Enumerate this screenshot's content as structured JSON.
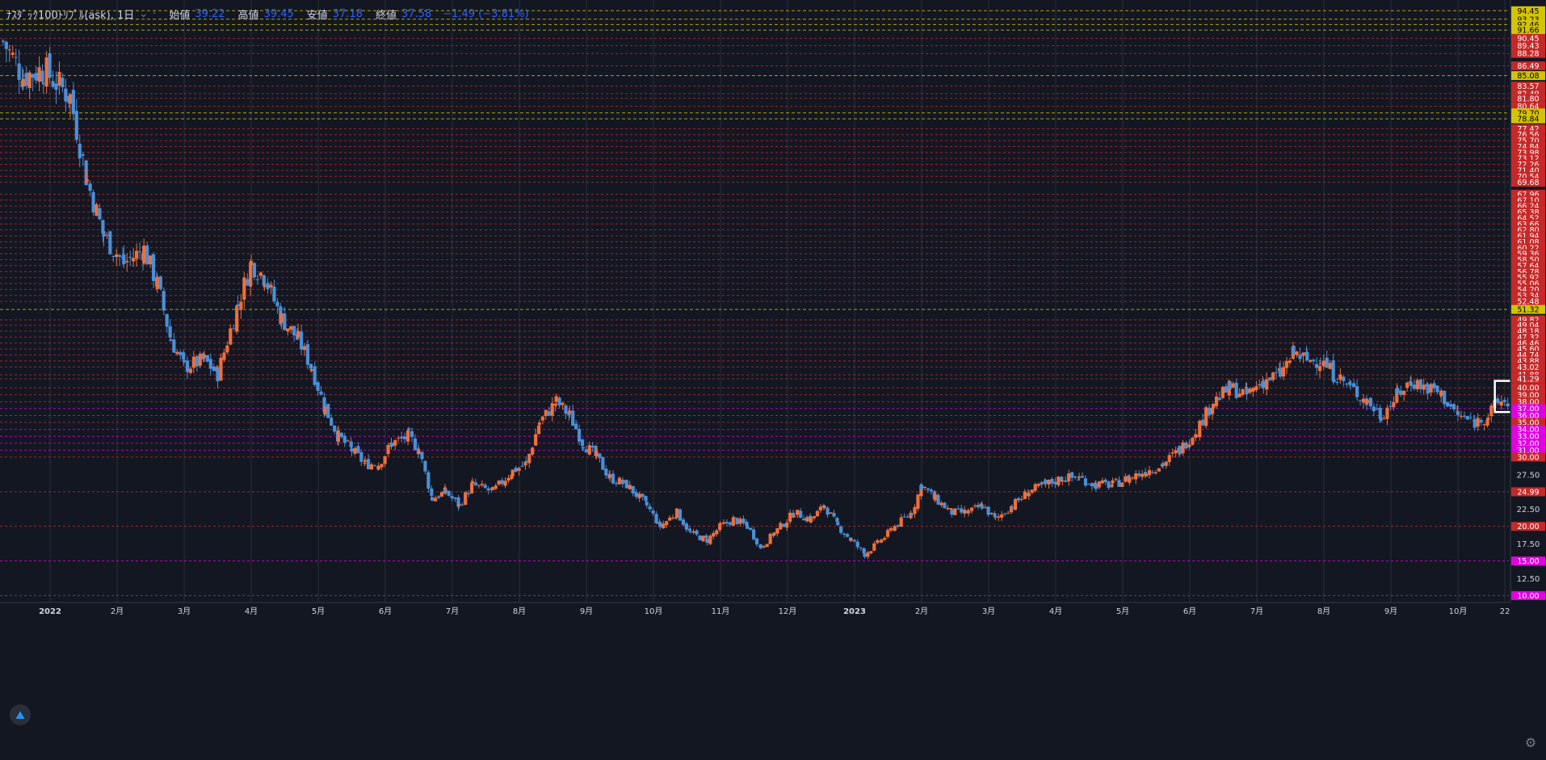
{
  "header": {
    "symbol": "ﾅｽﾀﾞｯｸ100ﾄﾘﾌﾟﾙ(ask), 1日",
    "open_label": "始値",
    "open_value": "39.22",
    "high_label": "高値",
    "high_value": "39.45",
    "low_label": "安値",
    "low_value": "37.18",
    "close_label": "終値",
    "close_value": "37.58",
    "change": "−1.49 (−3.81%)"
  },
  "colors": {
    "background": "#131722",
    "up": "#ef6f3a",
    "down": "#4a8fd8",
    "yellow_line": "#d4c400",
    "red_line": "#c62828",
    "magenta_line": "#e000e0",
    "grid": "#2a2e39",
    "axis_text": "#d1d4dc"
  },
  "chart_data": {
    "type": "candlestick",
    "title": "ﾅｽﾀﾞｯｸ100ﾄﾘﾌﾟﾙ(ask), 1日",
    "y_range": [
      9,
      96
    ],
    "y_ticks": [
      "12.50",
      "17.50",
      "22.50",
      "27.50"
    ],
    "x_tick_labels": [
      "2022",
      "2月",
      "3月",
      "4月",
      "5月",
      "6月",
      "7月",
      "8月",
      "9月",
      "10月",
      "11月",
      "12月",
      "2023",
      "2月",
      "3月",
      "4月",
      "5月",
      "6月",
      "7月",
      "8月",
      "9月",
      "10月",
      "22"
    ],
    "x_tick_months": [
      0,
      1,
      2,
      3,
      4,
      5,
      6,
      7,
      8,
      9,
      10,
      11,
      12,
      13,
      14,
      15,
      16,
      17,
      18,
      19,
      20,
      21,
      21.7
    ],
    "price_path": [
      [
        -0.7,
        90
      ],
      [
        -0.4,
        85
      ],
      [
        -0.1,
        86
      ],
      [
        0.3,
        82
      ],
      [
        0.55,
        70
      ],
      [
        0.8,
        62
      ],
      [
        1.1,
        58
      ],
      [
        1.4,
        60
      ],
      [
        1.6,
        55
      ],
      [
        1.8,
        47
      ],
      [
        2.0,
        43
      ],
      [
        2.3,
        44
      ],
      [
        2.5,
        42
      ],
      [
        2.8,
        52
      ],
      [
        3.0,
        58
      ],
      [
        3.2,
        56
      ],
      [
        3.45,
        50
      ],
      [
        3.7,
        47
      ],
      [
        3.9,
        43
      ],
      [
        4.1,
        37
      ],
      [
        4.3,
        33
      ],
      [
        4.5,
        31
      ],
      [
        4.7,
        29
      ],
      [
        4.9,
        29
      ],
      [
        5.1,
        32
      ],
      [
        5.35,
        33
      ],
      [
        5.5,
        31
      ],
      [
        5.7,
        24
      ],
      [
        5.9,
        25
      ],
      [
        6.1,
        23
      ],
      [
        6.3,
        26
      ],
      [
        6.6,
        25
      ],
      [
        6.9,
        28
      ],
      [
        7.1,
        29
      ],
      [
        7.3,
        35
      ],
      [
        7.55,
        38
      ],
      [
        7.75,
        36
      ],
      [
        7.95,
        32
      ],
      [
        8.15,
        30
      ],
      [
        8.35,
        27
      ],
      [
        8.6,
        26
      ],
      [
        8.9,
        23
      ],
      [
        9.1,
        20
      ],
      [
        9.35,
        22
      ],
      [
        9.55,
        19
      ],
      [
        9.8,
        18
      ],
      [
        10.0,
        20
      ],
      [
        10.2,
        21
      ],
      [
        10.4,
        20
      ],
      [
        10.6,
        17
      ],
      [
        10.8,
        19
      ],
      [
        11.1,
        22
      ],
      [
        11.35,
        21
      ],
      [
        11.55,
        23
      ],
      [
        11.75,
        20
      ],
      [
        11.95,
        18
      ],
      [
        12.15,
        16
      ],
      [
        12.4,
        18
      ],
      [
        12.6,
        20
      ],
      [
        12.85,
        22
      ],
      [
        13.0,
        26
      ],
      [
        13.2,
        24
      ],
      [
        13.45,
        22
      ],
      [
        13.7,
        22
      ],
      [
        13.9,
        23
      ],
      [
        14.1,
        21
      ],
      [
        14.35,
        23
      ],
      [
        14.6,
        25
      ],
      [
        14.85,
        26
      ],
      [
        15.1,
        27
      ],
      [
        15.35,
        27
      ],
      [
        15.6,
        26
      ],
      [
        15.85,
        26
      ],
      [
        16.1,
        27
      ],
      [
        16.35,
        28
      ],
      [
        16.6,
        29
      ],
      [
        16.85,
        31
      ],
      [
        17.1,
        34
      ],
      [
        17.35,
        38
      ],
      [
        17.6,
        40
      ],
      [
        17.85,
        39
      ],
      [
        18.1,
        41
      ],
      [
        18.35,
        42
      ],
      [
        18.55,
        45
      ],
      [
        18.75,
        44
      ],
      [
        18.95,
        44
      ],
      [
        19.15,
        42
      ],
      [
        19.4,
        40
      ],
      [
        19.65,
        38
      ],
      [
        19.85,
        36
      ],
      [
        20.1,
        39
      ],
      [
        20.3,
        41
      ],
      [
        20.55,
        40
      ],
      [
        20.75,
        39
      ],
      [
        21.0,
        36
      ],
      [
        21.25,
        35
      ],
      [
        21.45,
        36
      ],
      [
        21.6,
        38
      ],
      [
        21.75,
        38
      ]
    ],
    "lines": [
      {
        "value": 94.45,
        "label": "94.45",
        "kind": "yellow"
      },
      {
        "value": 93.23,
        "label": "93.23",
        "kind": "yellow"
      },
      {
        "value": 92.46,
        "label": "92.46",
        "kind": "yellow"
      },
      {
        "value": 91.66,
        "label": "91.66",
        "kind": "yellow"
      },
      {
        "value": 90.45,
        "label": "90.45",
        "kind": "red"
      },
      {
        "value": 89.43,
        "label": "89.43",
        "kind": "red"
      },
      {
        "value": 88.28,
        "label": "88.28",
        "kind": "red"
      },
      {
        "value": 86.49,
        "label": "86.49",
        "kind": "red"
      },
      {
        "value": 85.08,
        "label": "85.08",
        "kind": "yellow"
      },
      {
        "value": 83.57,
        "label": "83.57",
        "kind": "red"
      },
      {
        "value": 82.49,
        "label": "82.49",
        "kind": "red"
      },
      {
        "value": 81.8,
        "label": "81.80",
        "kind": "red"
      },
      {
        "value": 80.64,
        "label": "80.64",
        "kind": "red"
      },
      {
        "value": 79.7,
        "label": "79.70",
        "kind": "yellow"
      },
      {
        "value": 78.84,
        "label": "78.84",
        "kind": "yellow"
      },
      {
        "value": 77.42,
        "label": "77.42",
        "kind": "red"
      },
      {
        "value": 76.56,
        "label": "76.56",
        "kind": "red"
      },
      {
        "value": 75.7,
        "label": "75.70",
        "kind": "red"
      },
      {
        "value": 74.84,
        "label": "74.84",
        "kind": "red"
      },
      {
        "value": 73.98,
        "label": "73.98",
        "kind": "red"
      },
      {
        "value": 73.12,
        "label": "73.12",
        "kind": "red"
      },
      {
        "value": 72.26,
        "label": "72.26",
        "kind": "red"
      },
      {
        "value": 71.4,
        "label": "71.40",
        "kind": "red"
      },
      {
        "value": 70.54,
        "label": "70.54",
        "kind": "red"
      },
      {
        "value": 69.68,
        "label": "69.68",
        "kind": "red"
      },
      {
        "value": 67.96,
        "label": "67.96",
        "kind": "red"
      },
      {
        "value": 67.1,
        "label": "67.10",
        "kind": "red"
      },
      {
        "value": 66.24,
        "label": "66.24",
        "kind": "red"
      },
      {
        "value": 65.38,
        "label": "65.38",
        "kind": "red"
      },
      {
        "value": 64.52,
        "label": "64.52",
        "kind": "red"
      },
      {
        "value": 63.66,
        "label": "63.66",
        "kind": "red"
      },
      {
        "value": 62.8,
        "label": "62.80",
        "kind": "red"
      },
      {
        "value": 61.94,
        "label": "61.94",
        "kind": "red"
      },
      {
        "value": 61.08,
        "label": "61.08",
        "kind": "red"
      },
      {
        "value": 60.22,
        "label": "60.22",
        "kind": "red"
      },
      {
        "value": 59.36,
        "label": "59.36",
        "kind": "red"
      },
      {
        "value": 58.5,
        "label": "58.50",
        "kind": "red"
      },
      {
        "value": 57.64,
        "label": "57.64",
        "kind": "red"
      },
      {
        "value": 56.78,
        "label": "56.78",
        "kind": "red"
      },
      {
        "value": 55.92,
        "label": "55.92",
        "kind": "red"
      },
      {
        "value": 55.06,
        "label": "55.06",
        "kind": "red"
      },
      {
        "value": 54.2,
        "label": "54.20",
        "kind": "red"
      },
      {
        "value": 53.34,
        "label": "53.34",
        "kind": "red"
      },
      {
        "value": 52.48,
        "label": "52.48",
        "kind": "red"
      },
      {
        "value": 51.32,
        "label": "51.32",
        "kind": "yellow"
      },
      {
        "value": 49.82,
        "label": "49.82",
        "kind": "red"
      },
      {
        "value": 49.04,
        "label": "49.04",
        "kind": "red"
      },
      {
        "value": 48.18,
        "label": "48.18",
        "kind": "red"
      },
      {
        "value": 47.32,
        "label": "47.32",
        "kind": "red"
      },
      {
        "value": 46.46,
        "label": "46.46",
        "kind": "red"
      },
      {
        "value": 45.6,
        "label": "45.60",
        "kind": "red"
      },
      {
        "value": 44.74,
        "label": "44.74",
        "kind": "red"
      },
      {
        "value": 43.88,
        "label": "43.88",
        "kind": "red"
      },
      {
        "value": 43.02,
        "label": "43.02",
        "kind": "red"
      },
      {
        "value": 41.88,
        "label": "41.88",
        "kind": "red"
      },
      {
        "value": 41.29,
        "label": "41.29",
        "kind": "red"
      },
      {
        "value": 40.0,
        "label": "40.00",
        "kind": "red"
      },
      {
        "value": 39.0,
        "label": "39.00",
        "kind": "red"
      },
      {
        "value": 38.0,
        "label": "38.00",
        "kind": "red"
      },
      {
        "value": 37.0,
        "label": "37.00",
        "kind": "magenta"
      },
      {
        "value": 36.0,
        "label": "36.00",
        "kind": "magenta"
      },
      {
        "value": 35.0,
        "label": "35.00",
        "kind": "red"
      },
      {
        "value": 34.0,
        "label": "34.00",
        "kind": "magenta"
      },
      {
        "value": 33.0,
        "label": "33.00",
        "kind": "magenta"
      },
      {
        "value": 32.0,
        "label": "32.00",
        "kind": "magenta"
      },
      {
        "value": 31.0,
        "label": "31.00",
        "kind": "magenta"
      },
      {
        "value": 30.0,
        "label": "30.00",
        "kind": "red"
      },
      {
        "value": 24.99,
        "label": "24.99",
        "kind": "red"
      },
      {
        "value": 20.0,
        "label": "20.00",
        "kind": "red"
      },
      {
        "value": 15.0,
        "label": "15.00",
        "kind": "magenta"
      },
      {
        "value": 10.0,
        "label": "10.00",
        "kind": "magenta"
      }
    ],
    "highlight_box": {
      "x_month_start": 21.55,
      "x_month_end": 21.8,
      "y_low": 36.5,
      "y_high": 41.0
    }
  },
  "icons": {
    "settings": "gear-icon",
    "logo": "tradingview-logo-icon"
  }
}
